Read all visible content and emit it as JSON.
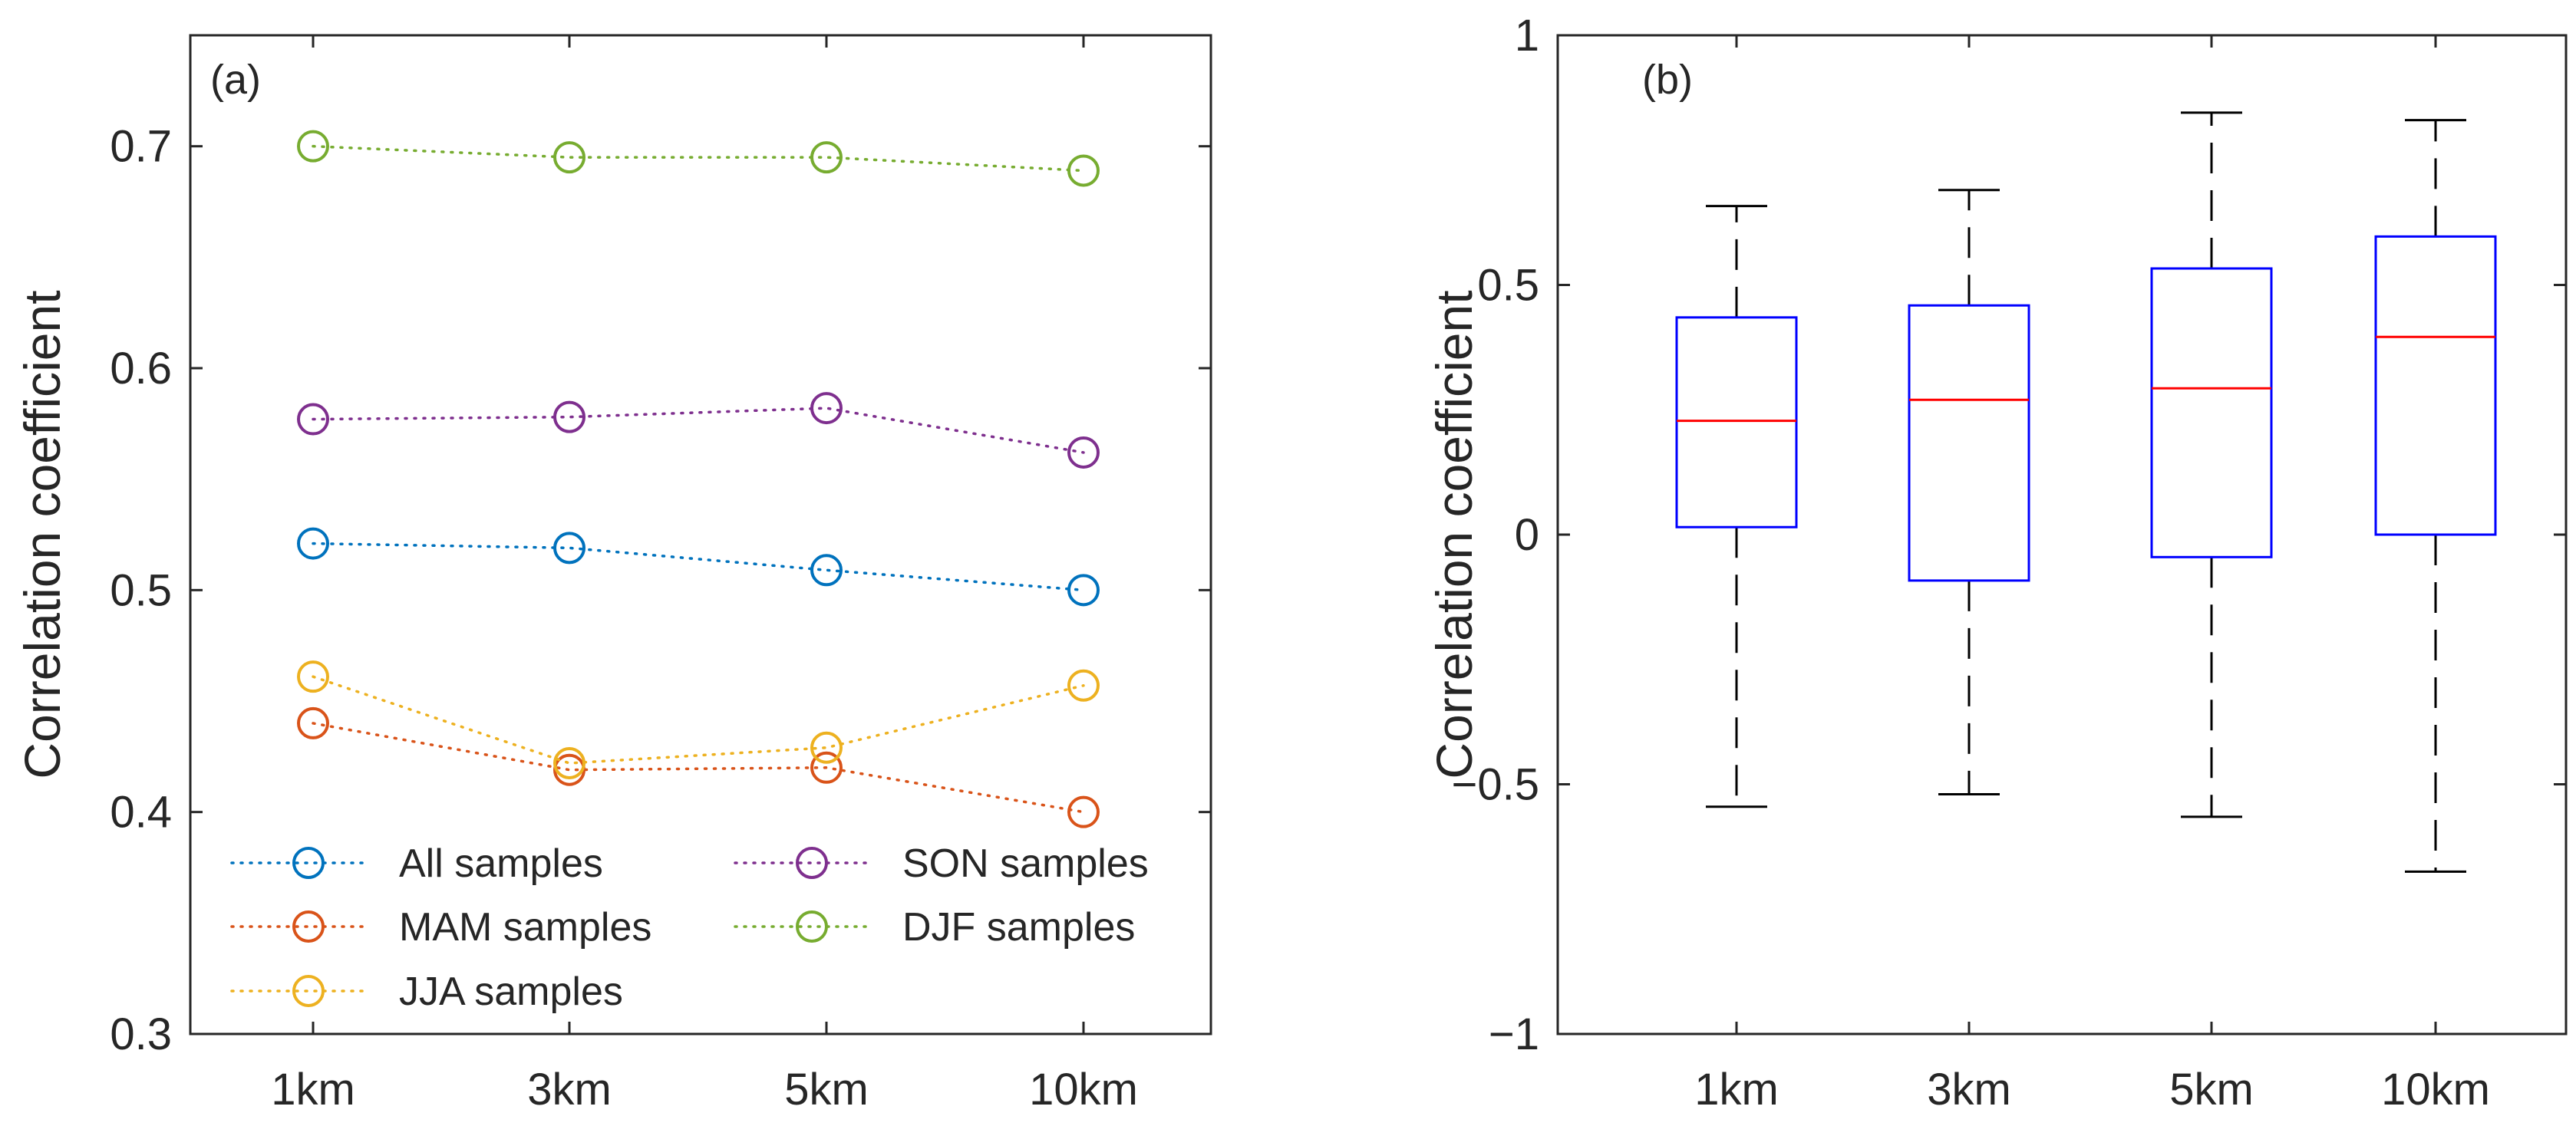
{
  "chart_data": [
    {
      "panel": "(a)",
      "type": "line",
      "ylabel": "Correlation coefficient",
      "xlabel": "",
      "categories": [
        "1km",
        "3km",
        "5km",
        "10km"
      ],
      "ylim": [
        0.3,
        0.75
      ],
      "yticks": [
        0.3,
        0.4,
        0.5,
        0.6,
        0.7
      ],
      "ytick_labels": [
        "0.3",
        "0.4",
        "0.5",
        "0.6",
        "0.7"
      ],
      "series": [
        {
          "name": "All samples",
          "color": "#0072BD",
          "values": [
            0.521,
            0.519,
            0.509,
            0.5
          ]
        },
        {
          "name": "MAM samples",
          "color": "#D95319",
          "values": [
            0.44,
            0.419,
            0.42,
            0.4
          ]
        },
        {
          "name": "JJA samples",
          "color": "#EDB120",
          "values": [
            0.461,
            0.422,
            0.429,
            0.457
          ]
        },
        {
          "name": "SON samples",
          "color": "#7E2F8E",
          "values": [
            0.577,
            0.578,
            0.582,
            0.562
          ]
        },
        {
          "name": "DJF samples",
          "color": "#77AC30",
          "values": [
            0.7,
            0.695,
            0.695,
            0.689
          ]
        }
      ],
      "legend": {
        "position": "bottom-left",
        "columns": 2
      }
    },
    {
      "panel": "(b)",
      "type": "box",
      "ylabel": "Correlation coefficient",
      "xlabel": "",
      "categories": [
        "1km",
        "3km",
        "5km",
        "10km"
      ],
      "ylim": [
        -1,
        1
      ],
      "yticks": [
        -1,
        -0.5,
        0,
        0.5,
        1
      ],
      "ytick_labels": [
        "−1",
        "−0.5",
        "0",
        "0.5",
        "1"
      ],
      "box_color": "#0000FF",
      "median_color": "#FF0000",
      "whisker_color": "#000000",
      "boxes": [
        {
          "category": "1km",
          "whisker_low": -0.545,
          "q1": 0.015,
          "median": 0.228,
          "q3": 0.435,
          "whisker_high": 0.658
        },
        {
          "category": "3km",
          "whisker_low": -0.52,
          "q1": -0.092,
          "median": 0.27,
          "q3": 0.459,
          "whisker_high": 0.69
        },
        {
          "category": "5km",
          "whisker_low": -0.565,
          "q1": -0.045,
          "median": 0.293,
          "q3": 0.533,
          "whisker_high": 0.845
        },
        {
          "category": "10km",
          "whisker_low": -0.675,
          "q1": 0.0,
          "median": 0.396,
          "q3": 0.597,
          "whisker_high": 0.83
        }
      ]
    }
  ]
}
